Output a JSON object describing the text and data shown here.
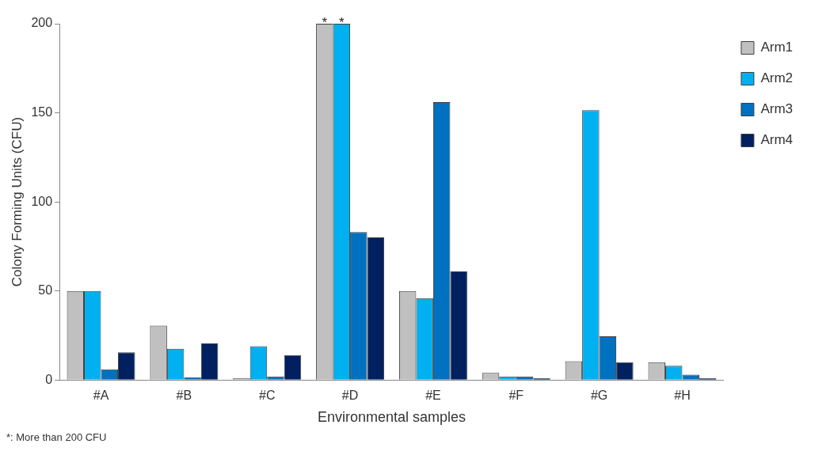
{
  "chart_data": {
    "type": "bar",
    "xlabel": "Environmental samples",
    "ylabel": "Colony Forming Units (CFU)",
    "categories": [
      "#A",
      "#B",
      "#C",
      "#D",
      "#E",
      "#F",
      "#G",
      "#H"
    ],
    "series": [
      {
        "name": "Arm1",
        "color": "#c0c0c0",
        "values": [
          50,
          30.5,
          1,
          200,
          50,
          4,
          10.5,
          10
        ],
        "value_labels": [
          null,
          null,
          null,
          "*",
          null,
          null,
          null,
          null
        ]
      },
      {
        "name": "Arm2",
        "color": "#00b0f0",
        "values": [
          50,
          17.5,
          19,
          200,
          46,
          2,
          151.5,
          8
        ],
        "value_labels": [
          null,
          null,
          null,
          "*",
          null,
          null,
          null,
          null
        ]
      },
      {
        "name": "Arm3",
        "color": "#0070c0",
        "values": [
          6,
          1.5,
          2,
          83,
          156,
          2,
          24.5,
          3
        ],
        "value_labels": [
          null,
          null,
          null,
          null,
          null,
          null,
          null,
          null
        ]
      },
      {
        "name": "Arm4",
        "color": "#002060",
        "values": [
          15.5,
          20.5,
          14,
          80,
          61,
          1,
          10,
          1
        ],
        "value_labels": [
          null,
          null,
          null,
          null,
          null,
          null,
          null,
          null
        ]
      }
    ],
    "ylim": [
      0,
      200
    ],
    "yticks": [
      0,
      50,
      100,
      150,
      200
    ],
    "grid": false,
    "legend": "top right",
    "annotations": [
      "*: More than 200 CFU"
    ]
  }
}
